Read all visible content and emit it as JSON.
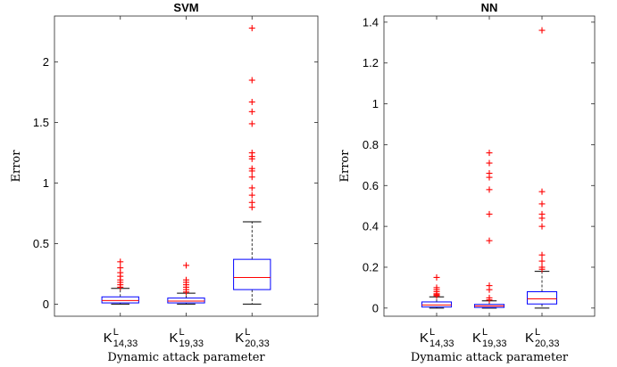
{
  "chart_data": [
    {
      "type": "box",
      "title": "SVM",
      "xlabel": "Dynamic attack parameter",
      "ylabel": "Error",
      "ylim": [
        -0.1,
        2.38
      ],
      "yticks": [
        0,
        0.5,
        1,
        1.5,
        2
      ],
      "ytick_labels": [
        "0",
        "0.5",
        "1",
        "1.5",
        "2"
      ],
      "categories": [
        {
          "main": "K",
          "sup": "L",
          "sub": "14,33"
        },
        {
          "main": "K",
          "sup": "L",
          "sub": "19,33"
        },
        {
          "main": "K",
          "sup": "L",
          "sub": "20,33"
        }
      ],
      "boxes": [
        {
          "q1": 0.01,
          "median": 0.03,
          "q3": 0.06,
          "whisker_low": 0.0,
          "whisker_high": 0.13,
          "outliers": [
            0.35,
            0.3,
            0.26,
            0.23,
            0.2,
            0.18,
            0.16,
            0.14
          ]
        },
        {
          "q1": 0.01,
          "median": 0.025,
          "q3": 0.05,
          "whisker_low": 0.0,
          "whisker_high": 0.09,
          "outliers": [
            0.32,
            0.2,
            0.18,
            0.16,
            0.14,
            0.12,
            0.1
          ]
        },
        {
          "q1": 0.12,
          "median": 0.22,
          "q3": 0.37,
          "whisker_low": 0.0,
          "whisker_high": 0.68,
          "outliers": [
            2.28,
            1.85,
            1.67,
            1.59,
            1.49,
            1.25,
            1.22,
            1.2,
            1.12,
            1.1,
            1.05,
            0.96,
            0.9,
            0.84,
            0.8
          ]
        }
      ]
    },
    {
      "type": "box",
      "title": "NN",
      "xlabel": "Dynamic attack parameter",
      "ylabel": "Error",
      "ylim": [
        -0.04,
        1.43
      ],
      "yticks": [
        0,
        0.2,
        0.4,
        0.6,
        0.8,
        1,
        1.2,
        1.4
      ],
      "ytick_labels": [
        "0",
        "0.2",
        "0.4",
        "0.6",
        "0.8",
        "1",
        "1.2",
        "1.4"
      ],
      "categories": [
        {
          "main": "K",
          "sup": "L",
          "sub": "14,33"
        },
        {
          "main": "K",
          "sup": "L",
          "sub": "19,33"
        },
        {
          "main": "K",
          "sup": "L",
          "sub": "20,33"
        }
      ],
      "boxes": [
        {
          "q1": 0.005,
          "median": 0.015,
          "q3": 0.03,
          "whisker_low": 0.0,
          "whisker_high": 0.055,
          "outliers": [
            0.15,
            0.1,
            0.09,
            0.08,
            0.07,
            0.065,
            0.06
          ]
        },
        {
          "q1": 0.003,
          "median": 0.01,
          "q3": 0.018,
          "whisker_low": 0.0,
          "whisker_high": 0.035,
          "outliers": [
            0.76,
            0.71,
            0.66,
            0.64,
            0.58,
            0.46,
            0.33,
            0.11,
            0.09,
            0.05,
            0.04
          ]
        },
        {
          "q1": 0.02,
          "median": 0.045,
          "q3": 0.08,
          "whisker_low": 0.0,
          "whisker_high": 0.18,
          "outliers": [
            1.36,
            0.57,
            0.51,
            0.46,
            0.44,
            0.4,
            0.26,
            0.23,
            0.2,
            0.19
          ]
        }
      ]
    }
  ]
}
